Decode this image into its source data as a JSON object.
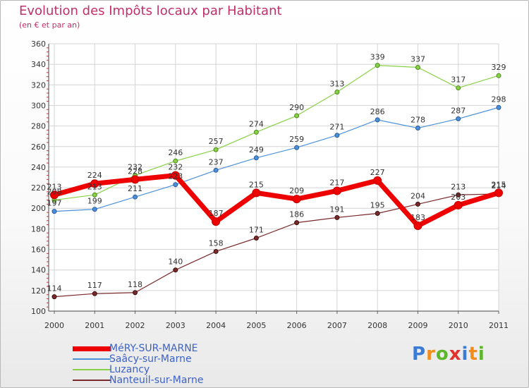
{
  "chart_data": {
    "type": "line",
    "title": "Evolution des Impôts locaux par Habitant",
    "subtitle": "(en € et par an)",
    "xlabel": "",
    "ylabel": "",
    "ylim": [
      100,
      360
    ],
    "yticks": [
      "100",
      "120",
      "140",
      "160",
      "180",
      "200",
      "220",
      "240",
      "260",
      "280",
      "300",
      "320",
      "340",
      "360"
    ],
    "categories": [
      "2000",
      "2001",
      "2002",
      "2003",
      "2004",
      "2005",
      "2006",
      "2007",
      "2008",
      "2009",
      "2010",
      "2011"
    ],
    "grid": true,
    "legend_position": "bottom-left",
    "series": [
      {
        "name": "MéRY-SUR-MARNE",
        "color": "#ee0000",
        "values": [
          213,
          224,
          228,
          232,
          187,
          215,
          209,
          217,
          227,
          183,
          203,
          215
        ],
        "labels": [
          "213",
          "224",
          "228",
          "232",
          "187",
          "215",
          "209",
          "217",
          "227",
          "183",
          "203",
          "215"
        ]
      },
      {
        "name": "Saâcy-sur-Marne",
        "color": "#4a90d9",
        "values": [
          197,
          199,
          211,
          223,
          237,
          249,
          259,
          271,
          286,
          278,
          287,
          298
        ],
        "labels": [
          "197",
          "199",
          "211",
          "223",
          "237",
          "249",
          "259",
          "271",
          "286",
          "278",
          "287",
          "298"
        ]
      },
      {
        "name": "Luzancy",
        "color": "#88d147",
        "values": [
          208,
          213,
          232,
          246,
          257,
          274,
          290,
          313,
          339,
          337,
          317,
          329
        ],
        "labels": [
          "208",
          "213",
          "232",
          "246",
          "257",
          "274",
          "290",
          "313",
          "339",
          "337",
          "317",
          "329"
        ]
      },
      {
        "name": "Nanteuil-sur-Marne",
        "color": "#7a2a2a",
        "values": [
          114,
          117,
          118,
          140,
          158,
          171,
          186,
          191,
          195,
          204,
          213,
          214
        ],
        "labels": [
          "114",
          "117",
          "118",
          "140",
          "158",
          "171",
          "186",
          "191",
          "195",
          "204",
          "213",
          "214"
        ]
      }
    ]
  },
  "logo": {
    "letters": [
      "P",
      "r",
      "o",
      "x",
      "i",
      "t",
      "i"
    ]
  }
}
